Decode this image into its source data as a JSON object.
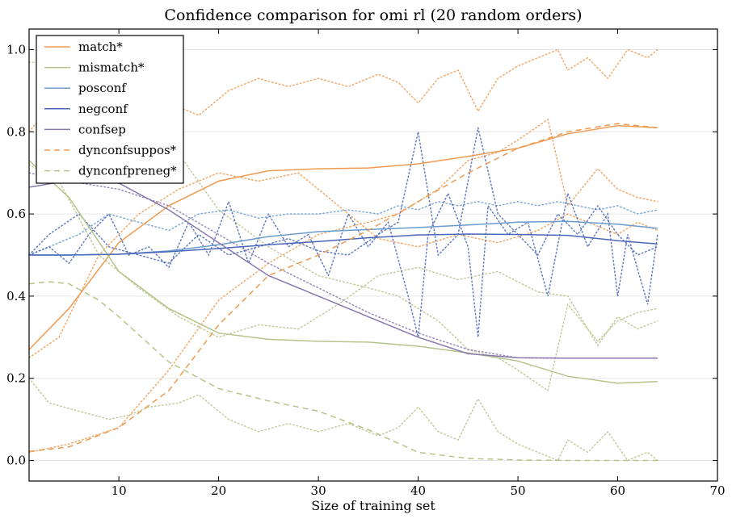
{
  "chart_data": {
    "type": "line",
    "title": "Confidence comparison for omi rl (20 random orders)",
    "xlabel": "Size of training set",
    "ylabel": "",
    "xlim": [
      1,
      70
    ],
    "ylim": [
      -0.05,
      1.05
    ],
    "xticks": [
      10,
      20,
      30,
      40,
      50,
      60,
      70
    ],
    "yticks": [
      0.0,
      0.2,
      0.4,
      0.6,
      0.8,
      1.0
    ],
    "xtick_labels": [
      "10",
      "20",
      "30",
      "40",
      "50",
      "60",
      "70"
    ],
    "ytick_labels": [
      "0.0",
      "0.2",
      "0.4",
      "0.6",
      "0.8",
      "1.0"
    ],
    "grid": true,
    "legend_position": "top-left",
    "series": [
      {
        "name": "match*",
        "color": "#ef9a50",
        "style": "solid",
        "x": [
          1,
          5,
          10,
          15,
          20,
          25,
          30,
          35,
          40,
          45,
          50,
          55,
          60,
          64
        ],
        "y": [
          0.27,
          0.37,
          0.53,
          0.62,
          0.68,
          0.705,
          0.71,
          0.712,
          0.722,
          0.74,
          0.76,
          0.795,
          0.815,
          0.81
        ]
      },
      {
        "name": "mismatch*",
        "color": "#b5c48a",
        "style": "solid",
        "x": [
          1,
          5,
          10,
          15,
          20,
          25,
          30,
          35,
          40,
          45,
          50,
          55,
          60,
          64
        ],
        "y": [
          0.73,
          0.64,
          0.46,
          0.37,
          0.31,
          0.295,
          0.29,
          0.288,
          0.278,
          0.262,
          0.242,
          0.205,
          0.188,
          0.192
        ]
      },
      {
        "name": "posconf",
        "color": "#6a9bcf",
        "style": "solid",
        "x": [
          1,
          5,
          10,
          15,
          20,
          25,
          30,
          35,
          40,
          45,
          50,
          55,
          60,
          64
        ],
        "y": [
          0.5,
          0.5,
          0.502,
          0.51,
          0.525,
          0.545,
          0.557,
          0.562,
          0.567,
          0.573,
          0.58,
          0.582,
          0.575,
          0.565
        ]
      },
      {
        "name": "negconf",
        "color": "#4a66b8",
        "style": "solid",
        "x": [
          1,
          5,
          10,
          15,
          20,
          25,
          30,
          35,
          40,
          45,
          50,
          55,
          60,
          64
        ],
        "y": [
          0.5,
          0.5,
          0.502,
          0.508,
          0.516,
          0.525,
          0.533,
          0.542,
          0.549,
          0.551,
          0.55,
          0.548,
          0.535,
          0.527
        ]
      },
      {
        "name": "confsep",
        "color": "#8878ae",
        "style": "solid",
        "x": [
          1,
          3,
          5,
          10,
          15,
          20,
          25,
          30,
          35,
          40,
          45,
          50,
          55,
          60,
          64
        ],
        "y": [
          0.665,
          0.673,
          0.68,
          0.675,
          0.61,
          0.53,
          0.45,
          0.4,
          0.35,
          0.3,
          0.26,
          0.25,
          0.249,
          0.249,
          0.249
        ]
      },
      {
        "name": "dynconfsuppos*",
        "color": "#ef9a50",
        "style": "dashed",
        "x": [
          1,
          5,
          10,
          15,
          20,
          25,
          30,
          35,
          40,
          45,
          50,
          55,
          60,
          64
        ],
        "y": [
          0.022,
          0.033,
          0.08,
          0.17,
          0.33,
          0.45,
          0.5,
          0.56,
          0.63,
          0.7,
          0.76,
          0.8,
          0.82,
          0.81
        ]
      },
      {
        "name": "dynconfpreneg*",
        "color": "#b5c48a",
        "style": "dashed",
        "x": [
          1,
          3,
          5,
          8,
          10,
          15,
          20,
          25,
          30,
          35,
          40,
          45,
          50,
          55,
          60,
          64
        ],
        "y": [
          0.43,
          0.435,
          0.43,
          0.39,
          0.35,
          0.24,
          0.175,
          0.145,
          0.12,
          0.075,
          0.02,
          0.005,
          0.001,
          0.0,
          0.0,
          0.0
        ]
      }
    ],
    "individual_orders": [
      {
        "color": "#ef9a50",
        "style": "dotted",
        "x": [
          1,
          3,
          6,
          9,
          11,
          13,
          16,
          18,
          21,
          24,
          27,
          30,
          33,
          36,
          38,
          40,
          42,
          44,
          46,
          48,
          50,
          52,
          54,
          55,
          57,
          59,
          61,
          63,
          64
        ],
        "y": [
          0.8,
          0.86,
          0.88,
          0.9,
          0.89,
          0.87,
          0.86,
          0.84,
          0.9,
          0.93,
          0.91,
          0.93,
          0.91,
          0.94,
          0.92,
          0.87,
          0.93,
          0.95,
          0.85,
          0.93,
          0.96,
          0.98,
          1.0,
          0.95,
          0.98,
          0.93,
          1.0,
          0.98,
          1.0
        ]
      },
      {
        "color": "#ef9a50",
        "style": "dotted",
        "x": [
          1,
          5,
          10,
          15,
          20,
          25,
          30,
          35,
          38,
          40,
          42,
          45,
          48,
          50,
          53,
          55,
          57,
          58,
          60,
          62,
          64
        ],
        "y": [
          0.02,
          0.04,
          0.08,
          0.22,
          0.39,
          0.48,
          0.55,
          0.58,
          0.6,
          0.63,
          0.66,
          0.73,
          0.75,
          0.78,
          0.83,
          0.62,
          0.68,
          0.71,
          0.66,
          0.64,
          0.63
        ]
      },
      {
        "color": "#ef9a50",
        "style": "dotted",
        "x": [
          1,
          4,
          8,
          12,
          16,
          20,
          24,
          28,
          32,
          36,
          40,
          44,
          48,
          52,
          55,
          58,
          60,
          62,
          64
        ],
        "y": [
          0.25,
          0.3,
          0.5,
          0.6,
          0.66,
          0.7,
          0.68,
          0.7,
          0.62,
          0.54,
          0.52,
          0.55,
          0.53,
          0.56,
          0.6,
          0.57,
          0.55,
          0.58,
          0.56
        ]
      },
      {
        "color": "#b5c48a",
        "style": "dotted",
        "x": [
          1,
          4,
          8,
          12,
          16,
          20,
          24,
          28,
          32,
          36,
          40,
          44,
          48,
          52,
          55,
          58,
          60,
          62,
          64
        ],
        "y": [
          0.72,
          0.68,
          0.5,
          0.42,
          0.35,
          0.3,
          0.33,
          0.32,
          0.38,
          0.45,
          0.47,
          0.44,
          0.46,
          0.41,
          0.4,
          0.28,
          0.35,
          0.32,
          0.34
        ]
      },
      {
        "color": "#b5c48a",
        "style": "dotted",
        "x": [
          1,
          3,
          6,
          9,
          11,
          13,
          16,
          18,
          21,
          24,
          27,
          30,
          33,
          36,
          38,
          40,
          42,
          44,
          46,
          48,
          50,
          52,
          54,
          55,
          57,
          59,
          61,
          63,
          64
        ],
        "y": [
          0.2,
          0.14,
          0.12,
          0.1,
          0.11,
          0.13,
          0.14,
          0.16,
          0.1,
          0.07,
          0.09,
          0.07,
          0.09,
          0.06,
          0.08,
          0.13,
          0.07,
          0.05,
          0.15,
          0.07,
          0.04,
          0.02,
          0.0,
          0.05,
          0.02,
          0.07,
          0.0,
          0.02,
          0.0
        ]
      },
      {
        "color": "#b5c48a",
        "style": "dotted",
        "x": [
          1,
          5,
          10,
          15,
          20,
          25,
          30,
          35,
          38,
          40,
          42,
          45,
          48,
          50,
          53,
          55,
          57,
          58,
          60,
          62,
          64
        ],
        "y": [
          0.97,
          0.96,
          0.92,
          0.78,
          0.61,
          0.52,
          0.45,
          0.42,
          0.4,
          0.37,
          0.34,
          0.27,
          0.25,
          0.22,
          0.17,
          0.38,
          0.32,
          0.29,
          0.34,
          0.36,
          0.37
        ]
      },
      {
        "color": "#6a9bcf",
        "style": "dotted",
        "x": [
          1,
          3,
          6,
          9,
          12,
          15,
          18,
          21,
          24,
          27,
          30,
          33,
          36,
          38,
          40,
          42,
          44,
          46,
          48,
          50,
          52,
          54,
          56,
          58,
          60,
          62,
          64
        ],
        "y": [
          0.5,
          0.52,
          0.55,
          0.6,
          0.58,
          0.56,
          0.6,
          0.61,
          0.59,
          0.6,
          0.6,
          0.61,
          0.6,
          0.62,
          0.61,
          0.63,
          0.62,
          0.63,
          0.62,
          0.63,
          0.62,
          0.63,
          0.62,
          0.61,
          0.62,
          0.6,
          0.61
        ]
      },
      {
        "color": "#4a66b8",
        "style": "dotted",
        "x": [
          1,
          3,
          5,
          7,
          9,
          11,
          13,
          15,
          17,
          19,
          21,
          23,
          25,
          27,
          29,
          31,
          33,
          35,
          37,
          39,
          40,
          41,
          43,
          45,
          46,
          47,
          49,
          51,
          53,
          55,
          57,
          59,
          60,
          61,
          63,
          64
        ],
        "y": [
          0.5,
          0.52,
          0.48,
          0.55,
          0.6,
          0.5,
          0.52,
          0.47,
          0.58,
          0.5,
          0.63,
          0.48,
          0.6,
          0.52,
          0.55,
          0.45,
          0.6,
          0.52,
          0.58,
          0.4,
          0.3,
          0.55,
          0.65,
          0.52,
          0.3,
          0.62,
          0.55,
          0.58,
          0.4,
          0.65,
          0.52,
          0.6,
          0.4,
          0.55,
          0.38,
          0.55
        ]
      },
      {
        "color": "#4a66b8",
        "style": "dotted",
        "x": [
          1,
          3,
          6,
          9,
          12,
          15,
          18,
          21,
          24,
          27,
          30,
          33,
          36,
          38,
          40,
          42,
          44,
          46,
          48,
          50,
          52,
          54,
          56,
          58,
          60,
          62,
          64
        ],
        "y": [
          0.5,
          0.55,
          0.6,
          0.52,
          0.5,
          0.48,
          0.55,
          0.5,
          0.52,
          0.54,
          0.51,
          0.5,
          0.55,
          0.58,
          0.8,
          0.5,
          0.55,
          0.81,
          0.6,
          0.55,
          0.5,
          0.6,
          0.55,
          0.62,
          0.55,
          0.5,
          0.52
        ]
      },
      {
        "color": "#8878ae",
        "style": "dotted",
        "x": [
          1,
          5,
          10,
          15,
          20,
          25,
          30,
          35,
          40,
          45,
          50,
          55,
          60,
          64
        ],
        "y": [
          0.7,
          0.68,
          0.66,
          0.62,
          0.55,
          0.48,
          0.42,
          0.36,
          0.31,
          0.27,
          0.25,
          0.249,
          0.249,
          0.249
        ]
      }
    ]
  }
}
